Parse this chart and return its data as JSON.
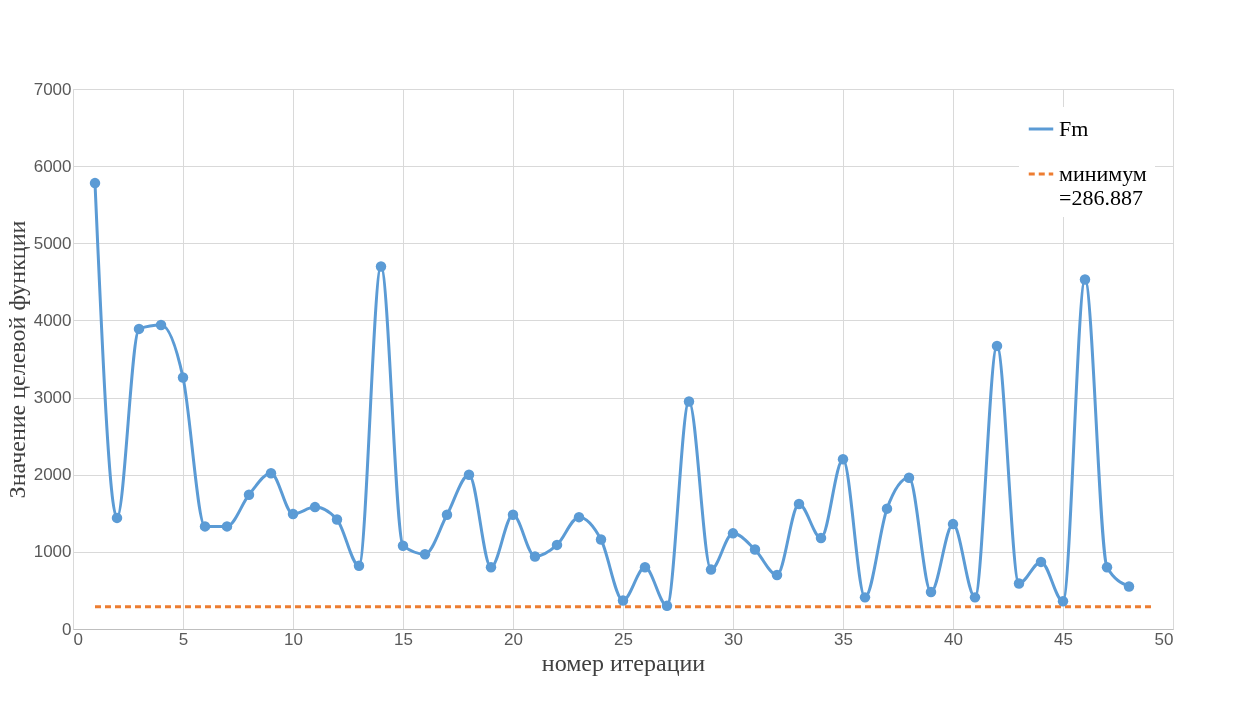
{
  "chart_data": {
    "type": "line",
    "xlabel": "номер итерации",
    "ylabel": "Значение целевой функции",
    "xlim": [
      0,
      50
    ],
    "xticks": [
      0,
      5,
      10,
      15,
      20,
      25,
      30,
      35,
      40,
      45,
      50
    ],
    "ylim": [
      0,
      7000
    ],
    "yticks": [
      0,
      1000,
      2000,
      3000,
      4000,
      5000,
      6000,
      7000
    ],
    "grid": true,
    "legend": "top right",
    "series": [
      {
        "name": "Fm",
        "color": "#5b9bd5",
        "marker": "circle",
        "line_style": "solid",
        "x": [
          1,
          2,
          3,
          4,
          5,
          6,
          7,
          8,
          9,
          10,
          11,
          12,
          13,
          14,
          15,
          16,
          17,
          18,
          19,
          20,
          21,
          22,
          23,
          24,
          25,
          26,
          27,
          28,
          29,
          30,
          31,
          32,
          33,
          34,
          35,
          36,
          37,
          38,
          39,
          40,
          41,
          42,
          43,
          44,
          45,
          46,
          47,
          48
        ],
        "values": [
          5780,
          1440,
          3890,
          3940,
          3260,
          1330,
          1330,
          1740,
          2020,
          1490,
          1580,
          1420,
          820,
          4700,
          1080,
          970,
          1480,
          2000,
          800,
          1480,
          940,
          1090,
          1450,
          1160,
          370,
          800,
          300,
          2950,
          770,
          1240,
          1030,
          700,
          1620,
          1180,
          2200,
          410,
          1560,
          1960,
          480,
          1360,
          410,
          3670,
          590,
          870,
          360,
          4530,
          800,
          550
        ]
      },
      {
        "name": "минимум =286.887",
        "color": "#ed7d31",
        "marker": "none",
        "line_style": "dashed",
        "x": [
          1,
          49
        ],
        "values": [
          286.887,
          286.887
        ]
      }
    ]
  }
}
